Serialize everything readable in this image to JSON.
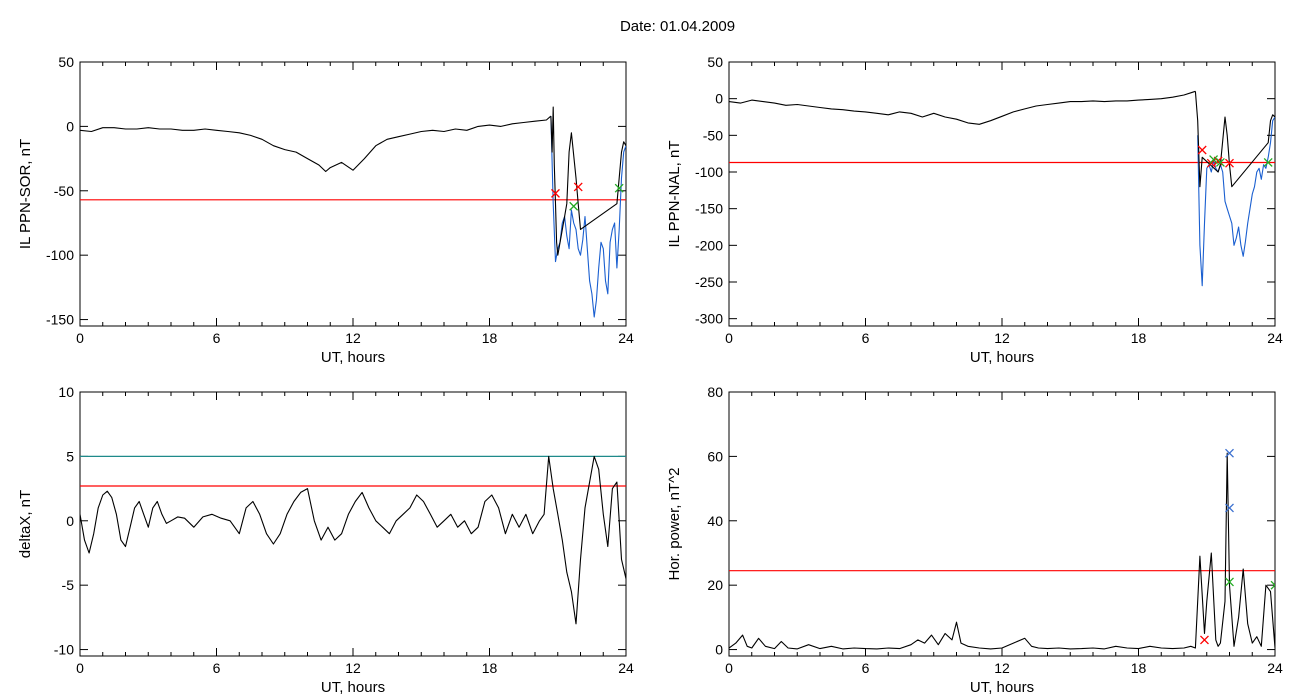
{
  "title": "Date:  01.04.2009",
  "colors": {
    "trace": "#000000",
    "threshold": "#ff0000",
    "substorm_trace": "#1a5fd0",
    "marker_red": "#ff0000",
    "marker_green": "#22aa22",
    "marker_blue": "#3a6fcf",
    "upper_threshold": "#1f8a8a"
  },
  "chart_data": [
    {
      "type": "line",
      "xlabel": "UT, hours",
      "ylabel": "IL PPN-SOR, nT",
      "xlim": [
        0,
        24
      ],
      "ylim": [
        -155,
        50
      ],
      "xticks": [
        0,
        6,
        12,
        18,
        24
      ],
      "yticks": [
        50,
        0,
        -50,
        -100,
        -150
      ],
      "threshold": -57,
      "series": [
        {
          "style": "black",
          "x": [
            0,
            0.5,
            1,
            1.5,
            2,
            2.5,
            3,
            3.5,
            4,
            4.5,
            5,
            5.5,
            6,
            6.5,
            7,
            7.5,
            8,
            8.5,
            9,
            9.5,
            10,
            10.5,
            10.8,
            11,
            11.5,
            12,
            12.5,
            13,
            13.5,
            14,
            14.5,
            15,
            15.5,
            16,
            16.5,
            17,
            17.5,
            18,
            18.5,
            19,
            19.5,
            20,
            20.5,
            20.7
          ],
          "y": [
            -3,
            -4,
            -1,
            -1,
            -2,
            -2,
            -1,
            -2,
            -2,
            -3,
            -3,
            -2,
            -3,
            -4,
            -5,
            -7,
            -10,
            -15,
            -18,
            -20,
            -25,
            -30,
            -35,
            -32,
            -28,
            -34,
            -25,
            -15,
            -10,
            -8,
            -6,
            -4,
            -3,
            -4,
            -2,
            -3,
            0,
            1,
            0,
            2,
            3,
            4,
            5,
            8
          ]
        },
        {
          "style": "blue",
          "x": [
            20.7,
            20.8,
            20.9,
            21.0,
            21.1,
            21.2,
            21.3,
            21.4,
            21.5,
            21.6,
            21.7,
            21.8,
            21.9,
            22.0,
            22.1,
            22.2,
            22.3,
            22.4,
            22.5,
            22.6,
            22.7,
            22.8,
            22.9,
            23.0,
            23.1,
            23.2,
            23.3,
            23.4,
            23.5,
            23.6,
            23.7,
            23.8,
            23.9,
            24.0
          ],
          "y": [
            8,
            -60,
            -105,
            -95,
            -90,
            -75,
            -70,
            -85,
            -95,
            -65,
            -75,
            -80,
            -95,
            -100,
            -88,
            -70,
            -95,
            -120,
            -130,
            -148,
            -135,
            -110,
            -90,
            -95,
            -120,
            -130,
            -90,
            -80,
            -75,
            -110,
            -80,
            -40,
            -20,
            -15
          ]
        },
        {
          "style": "black",
          "x": [
            20.7,
            20.75,
            20.8,
            20.85,
            20.9,
            20.95,
            21.0,
            21.3,
            21.4,
            21.5,
            21.6,
            21.8,
            21.9,
            22.0,
            23.6,
            23.7,
            23.8,
            23.9,
            24.0
          ],
          "y": [
            8,
            -20,
            15,
            -30,
            -60,
            -90,
            -100,
            -70,
            -60,
            -20,
            -5,
            -40,
            -60,
            -80,
            -60,
            -40,
            -20,
            -12,
            -15
          ]
        }
      ],
      "markers": [
        {
          "x": 20.9,
          "y": -52,
          "color": "red"
        },
        {
          "x": 21.9,
          "y": -47,
          "color": "red"
        },
        {
          "x": 21.7,
          "y": -62,
          "color": "green"
        },
        {
          "x": 23.7,
          "y": -48,
          "color": "green"
        }
      ]
    },
    {
      "type": "line",
      "xlabel": "UT, hours",
      "ylabel": "IL PPN-NAL, nT",
      "xlim": [
        0,
        24
      ],
      "ylim": [
        -310,
        50
      ],
      "xticks": [
        0,
        6,
        12,
        18,
        24
      ],
      "yticks": [
        50,
        0,
        -50,
        -100,
        -150,
        -200,
        -250,
        -300
      ],
      "threshold": -87,
      "series": [
        {
          "style": "black",
          "x": [
            0,
            0.5,
            1,
            1.5,
            2,
            2.5,
            3,
            3.5,
            4,
            4.5,
            5,
            5.5,
            6,
            6.5,
            7,
            7.5,
            8,
            8.5,
            9,
            9.5,
            10,
            10.5,
            11,
            11.5,
            12,
            12.5,
            13,
            13.5,
            14,
            14.5,
            15,
            15.5,
            16,
            16.5,
            17,
            17.5,
            18,
            18.5,
            19,
            19.5,
            20,
            20.3,
            20.5
          ],
          "y": [
            -4,
            -6,
            -2,
            -4,
            -6,
            -9,
            -8,
            -10,
            -12,
            -14,
            -15,
            -17,
            -18,
            -20,
            -22,
            -18,
            -20,
            -25,
            -20,
            -25,
            -28,
            -33,
            -35,
            -30,
            -24,
            -18,
            -14,
            -10,
            -8,
            -6,
            -4,
            -4,
            -3,
            -4,
            -3,
            -3,
            -2,
            -1,
            0,
            2,
            5,
            8,
            10
          ]
        },
        {
          "style": "blue",
          "x": [
            20.6,
            20.7,
            20.8,
            20.9,
            21.0,
            21.1,
            21.2,
            21.3,
            21.4,
            21.5,
            21.6,
            21.7,
            21.8,
            21.9,
            22.0,
            22.1,
            22.2,
            22.3,
            22.4,
            22.5,
            22.6,
            22.7,
            22.8,
            22.9,
            23.0,
            23.1,
            23.2,
            23.3,
            23.4,
            23.5,
            23.6,
            23.7,
            23.8,
            23.9,
            24.0
          ],
          "y": [
            -50,
            -200,
            -255,
            -170,
            -95,
            -90,
            -100,
            -85,
            -95,
            -100,
            -90,
            -100,
            -140,
            -150,
            -160,
            -170,
            -200,
            -190,
            -175,
            -200,
            -215,
            -195,
            -170,
            -150,
            -130,
            -120,
            -100,
            -95,
            -110,
            -90,
            -95,
            -80,
            -60,
            -30,
            -25
          ]
        },
        {
          "style": "black",
          "x": [
            20.5,
            20.6,
            20.7,
            20.8,
            21.5,
            21.6,
            21.8,
            21.9,
            22.0,
            22.1,
            23.7,
            23.8,
            23.9,
            24.0
          ],
          "y": [
            10,
            -30,
            -120,
            -80,
            -100,
            -90,
            -25,
            -50,
            -90,
            -120,
            -60,
            -30,
            -22,
            -25
          ]
        }
      ],
      "markers": [
        {
          "x": 20.8,
          "y": -70,
          "color": "red"
        },
        {
          "x": 21.2,
          "y": -88,
          "color": "red"
        },
        {
          "x": 21.5,
          "y": -85,
          "color": "red"
        },
        {
          "x": 22.0,
          "y": -88,
          "color": "red"
        },
        {
          "x": 21.3,
          "y": -83,
          "color": "green"
        },
        {
          "x": 21.6,
          "y": -87,
          "color": "green"
        },
        {
          "x": 23.7,
          "y": -87,
          "color": "green"
        }
      ]
    },
    {
      "type": "line",
      "xlabel": "UT, hours",
      "ylabel": "deltaX, nT",
      "xlim": [
        0,
        24
      ],
      "ylim": [
        -10.5,
        10
      ],
      "xticks": [
        0,
        6,
        12,
        18,
        24
      ],
      "yticks": [
        10,
        5,
        0,
        -5,
        -10
      ],
      "threshold": 2.7,
      "upper_threshold": 5,
      "series": [
        {
          "style": "black",
          "x": [
            0,
            0.2,
            0.4,
            0.6,
            0.8,
            1.0,
            1.2,
            1.4,
            1.6,
            1.8,
            2.0,
            2.2,
            2.4,
            2.6,
            2.8,
            3.0,
            3.2,
            3.4,
            3.6,
            3.8,
            4.0,
            4.3,
            4.6,
            5.0,
            5.4,
            5.8,
            6.2,
            6.6,
            7.0,
            7.3,
            7.6,
            7.9,
            8.2,
            8.5,
            8.8,
            9.1,
            9.4,
            9.7,
            10.0,
            10.3,
            10.6,
            10.9,
            11.2,
            11.5,
            11.8,
            12.1,
            12.4,
            12.7,
            13.0,
            13.3,
            13.6,
            13.9,
            14.2,
            14.5,
            14.8,
            15.1,
            15.4,
            15.7,
            16.0,
            16.3,
            16.6,
            16.9,
            17.2,
            17.5,
            17.8,
            18.1,
            18.4,
            18.7,
            19.0,
            19.3,
            19.6,
            19.9,
            20.2,
            20.4,
            20.6,
            20.8,
            21.0,
            21.2,
            21.4,
            21.6,
            21.8,
            22.0,
            22.2,
            22.4,
            22.6,
            22.8,
            23.0,
            23.2,
            23.4,
            23.6,
            23.8,
            24.0
          ],
          "y": [
            0.5,
            -1.5,
            -2.5,
            -1.0,
            1.0,
            2.0,
            2.3,
            1.8,
            0.5,
            -1.5,
            -2.0,
            -0.5,
            1.0,
            1.5,
            0.5,
            -0.5,
            1.0,
            1.5,
            0.5,
            -0.2,
            0,
            0.3,
            0.2,
            -0.5,
            0.3,
            0.5,
            0.2,
            0,
            -1.0,
            1.0,
            1.5,
            0.5,
            -1.0,
            -1.8,
            -1.0,
            0.5,
            1.5,
            2.2,
            2.5,
            0,
            -1.5,
            -0.5,
            -1.5,
            -1.0,
            0.5,
            1.5,
            2.2,
            1.0,
            0,
            -0.5,
            -1.0,
            0,
            0.5,
            1.0,
            2.0,
            1.5,
            0.5,
            -0.5,
            0,
            0.5,
            -0.5,
            0,
            -1.0,
            -0.5,
            1.5,
            2.0,
            1.0,
            -1.0,
            0.5,
            -0.5,
            0.5,
            -1.0,
            0,
            0.5,
            5.0,
            2.5,
            0.5,
            -1.5,
            -4.0,
            -5.5,
            -8.0,
            -3.0,
            1.0,
            3.0,
            5.0,
            4.0,
            0.5,
            -2.0,
            2.5,
            3.0,
            -3.0,
            -4.5
          ]
        }
      ]
    },
    {
      "type": "line",
      "xlabel": "UT, hours",
      "ylabel": "Hor. power, nT^2",
      "xlim": [
        0,
        24
      ],
      "ylim": [
        -2,
        80
      ],
      "xticks": [
        0,
        6,
        12,
        18,
        24
      ],
      "yticks": [
        80,
        60,
        40,
        20,
        0
      ],
      "threshold": 24.5,
      "series": [
        {
          "style": "black",
          "x": [
            0,
            0.3,
            0.6,
            0.8,
            1.0,
            1.3,
            1.6,
            2.0,
            2.3,
            2.6,
            3.0,
            3.5,
            4.0,
            4.5,
            5.0,
            5.5,
            6.0,
            6.5,
            7.0,
            7.5,
            8.0,
            8.3,
            8.6,
            8.9,
            9.2,
            9.5,
            9.8,
            10.0,
            10.2,
            10.5,
            11.0,
            11.5,
            12.0,
            12.5,
            13.0,
            13.3,
            13.6,
            14.0,
            14.5,
            15.0,
            15.5,
            16.0,
            16.5,
            17.0,
            17.5,
            18.0,
            18.5,
            19.0,
            19.5,
            20.0,
            20.3,
            20.5,
            20.7,
            20.9,
            21.0,
            21.2,
            21.4,
            21.5,
            21.6,
            21.8,
            21.9,
            22.0,
            22.2,
            22.4,
            22.6,
            22.8,
            23.0,
            23.2,
            23.4,
            23.6,
            23.8,
            24.0
          ],
          "y": [
            0.5,
            2.0,
            4.5,
            1.0,
            0.5,
            3.5,
            1.0,
            0.3,
            2.5,
            0.5,
            0.2,
            1.5,
            0.3,
            1.0,
            0.2,
            0.5,
            0.3,
            0.2,
            0.5,
            0.3,
            1.5,
            3.0,
            2.0,
            4.5,
            1.5,
            5.0,
            3.0,
            8.5,
            2.0,
            1.0,
            0.5,
            0.2,
            0.5,
            2.0,
            3.5,
            1.0,
            0.5,
            0.3,
            0.5,
            0.2,
            0.3,
            0.5,
            0.2,
            1.0,
            0.5,
            0.3,
            1.0,
            0.5,
            0.3,
            0.5,
            1.0,
            0.5,
            29.0,
            5.0,
            15.0,
            30.0,
            3.0,
            1.0,
            2.0,
            15.0,
            61.0,
            20.0,
            1.0,
            10.0,
            25.0,
            8.0,
            2.0,
            4.0,
            1.0,
            20.0,
            18.0,
            0.5
          ]
        }
      ],
      "markers": [
        {
          "x": 20.9,
          "y": 3,
          "color": "red"
        },
        {
          "x": 22.0,
          "y": 61,
          "color": "blue"
        },
        {
          "x": 22.0,
          "y": 44,
          "color": "blue"
        },
        {
          "x": 22.0,
          "y": 21,
          "color": "green"
        },
        {
          "x": 24.0,
          "y": 20,
          "color": "green"
        }
      ]
    }
  ]
}
